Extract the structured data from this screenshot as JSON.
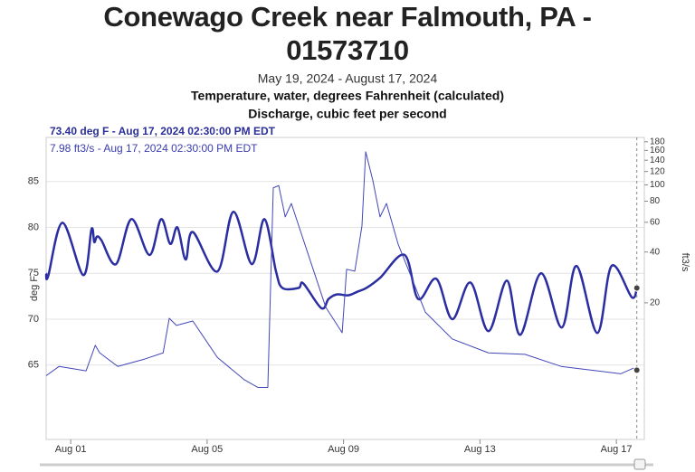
{
  "chart_data": {
    "type": "line",
    "title": "Conewago Creek near Falmouth, PA - 01573710",
    "subtitles": [
      "May 19, 2024 - August 17, 2024",
      "Temperature, water, degrees Fahrenheit (calculated)",
      "Discharge, cubic feet per second"
    ],
    "ylabel": "deg F",
    "y2label": "ft3/s",
    "xlim": [
      0.28,
      17.82
    ],
    "xticks": [
      {
        "value": 1,
        "label": "Aug 01"
      },
      {
        "value": 5,
        "label": "Aug 05"
      },
      {
        "value": 9,
        "label": "Aug 09"
      },
      {
        "value": 13,
        "label": "Aug 13"
      },
      {
        "value": 17,
        "label": "Aug 17"
      }
    ],
    "ylim": [
      56.9,
      89.8
    ],
    "yticks": [
      65,
      70,
      75,
      80,
      85
    ],
    "y2lim": [
      3.1,
      191
    ],
    "y2ticks": [
      20,
      40,
      60,
      80,
      100,
      120,
      140,
      160,
      180
    ],
    "y2_scale": "log",
    "grid": true,
    "series": [
      {
        "name": "73.40 deg F - Aug 17, 2024 02:30:00 PM EDT",
        "color": "#2b2ea0",
        "axis": "y",
        "x": [
          0.28,
          0.34,
          0.76,
          1.37,
          1.61,
          1.69,
          1.77,
          1.9,
          2.33,
          2.78,
          3.31,
          3.65,
          3.92,
          4.13,
          4.37,
          4.58,
          5.3,
          5.77,
          6.31,
          6.68,
          7.02,
          7.21,
          7.68,
          7.82,
          8.35,
          8.56,
          8.8,
          9.14,
          9.41,
          9.67,
          10.07,
          10.79,
          11.19,
          11.72,
          12.19,
          12.72,
          13.25,
          13.79,
          14.18,
          14.79,
          15.4,
          15.83,
          16.44,
          16.86,
          17.45,
          17.6
        ],
        "values": [
          75.0,
          74.7,
          80.5,
          74.8,
          79.8,
          78.4,
          79.0,
          78.6,
          76.0,
          80.9,
          77.0,
          80.9,
          78.2,
          80.0,
          76.5,
          79.5,
          75.2,
          81.7,
          76.0,
          80.9,
          75.2,
          73.4,
          73.4,
          73.9,
          71.2,
          72.2,
          72.7,
          72.6,
          73.0,
          73.4,
          74.5,
          77.0,
          72.2,
          74.4,
          70.0,
          74.0,
          68.7,
          74.2,
          68.3,
          75.0,
          69.1,
          75.8,
          68.5,
          75.8,
          72.4,
          73.4
        ]
      },
      {
        "name": "7.98 ft3/s - Aug 17, 2024 02:30:00 PM EDT",
        "color": "#4346b8",
        "axis": "y2",
        "x": [
          0.28,
          0.66,
          1.45,
          1.72,
          1.85,
          2.38,
          3.18,
          3.71,
          3.89,
          4.1,
          4.58,
          5.3,
          6.09,
          6.49,
          6.78,
          6.94,
          7.1,
          7.29,
          7.47,
          7.82,
          8.48,
          8.96,
          9.09,
          9.33,
          9.54,
          9.65,
          9.86,
          10.07,
          10.26,
          10.6,
          11.4,
          12.19,
          13.25,
          14.32,
          15.38,
          16.44,
          17.13,
          17.5,
          17.6
        ],
        "values": [
          7.4,
          8.4,
          7.9,
          11.2,
          10.1,
          8.4,
          9.3,
          10.1,
          16.2,
          14.7,
          15.6,
          9.5,
          7.0,
          6.3,
          6.3,
          96,
          99,
          64.6,
          77.6,
          47.4,
          18.8,
          13.3,
          31.6,
          30.8,
          57,
          157,
          106,
          64.6,
          77.6,
          44.6,
          17.6,
          12.2,
          10.1,
          9.9,
          8.4,
          7.9,
          7.6,
          8.2,
          7.98
        ]
      }
    ]
  }
}
